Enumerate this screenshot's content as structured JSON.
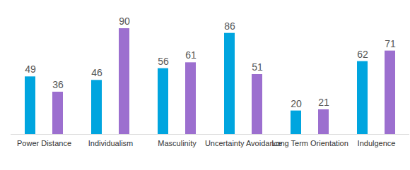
{
  "chart_data": {
    "type": "bar",
    "categories": [
      "Power Distance",
      "Individualism",
      "Masculinity",
      "Uncertainty Avoidance",
      "Long Term Orientation",
      "Indulgence"
    ],
    "series": [
      {
        "color": "#00A5DF",
        "values": [
          49,
          46,
          56,
          86,
          20,
          62
        ]
      },
      {
        "color": "#9C6FCF",
        "values": [
          36,
          90,
          61,
          51,
          21,
          71
        ]
      }
    ],
    "ylim": [
      0,
      90
    ],
    "grid": false,
    "data_labels": true,
    "tick_labels": "x"
  }
}
